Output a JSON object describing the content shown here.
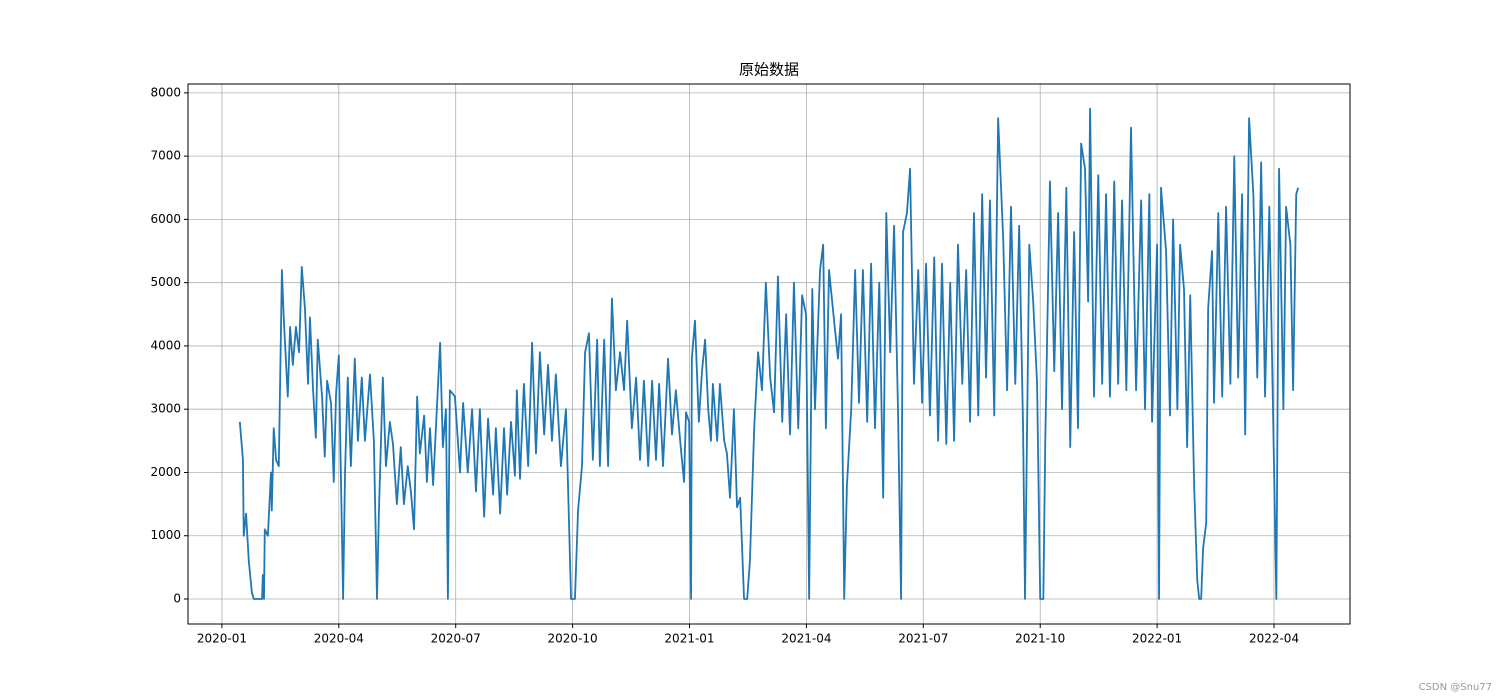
{
  "chart_data": {
    "type": "line",
    "title": "原始数据",
    "watermark": "CSDN @Snu77",
    "grid": true,
    "xlim": [
      -0.87,
      28.95
    ],
    "ylim": [
      -395,
      8140
    ],
    "xticks": [
      {
        "value": 0,
        "label": "2020-01"
      },
      {
        "value": 3,
        "label": "2020-04"
      },
      {
        "value": 6,
        "label": "2020-07"
      },
      {
        "value": 9,
        "label": "2020-10"
      },
      {
        "value": 12,
        "label": "2021-01"
      },
      {
        "value": 15,
        "label": "2021-04"
      },
      {
        "value": 18,
        "label": "2021-07"
      },
      {
        "value": 21,
        "label": "2021-10"
      },
      {
        "value": 24,
        "label": "2022-01"
      },
      {
        "value": 27,
        "label": "2022-04"
      }
    ],
    "yticks": [
      0,
      1000,
      2000,
      3000,
      4000,
      5000,
      6000,
      7000,
      8000
    ],
    "x": [
      0.46,
      0.54,
      0.56,
      0.62,
      0.69,
      0.77,
      0.82,
      1.03,
      1.05,
      1.08,
      1.1,
      1.18,
      1.26,
      1.28,
      1.33,
      1.39,
      1.46,
      1.54,
      1.59,
      1.69,
      1.75,
      1.82,
      1.9,
      1.98,
      2.05,
      2.13,
      2.21,
      2.26,
      2.34,
      2.41,
      2.46,
      2.57,
      2.64,
      2.7,
      2.8,
      2.87,
      2.93,
      3.0,
      3.11,
      3.16,
      3.23,
      3.31,
      3.41,
      3.49,
      3.59,
      3.67,
      3.8,
      3.9,
      3.98,
      4.03,
      4.13,
      4.21,
      4.31,
      4.39,
      4.49,
      4.59,
      4.67,
      4.77,
      4.85,
      4.93,
      5.01,
      5.08,
      5.19,
      5.26,
      5.34,
      5.42,
      5.52,
      5.6,
      5.67,
      5.75,
      5.8,
      5.85,
      5.98,
      6.11,
      6.19,
      6.31,
      6.42,
      6.52,
      6.62,
      6.73,
      6.83,
      6.96,
      7.03,
      7.14,
      7.24,
      7.32,
      7.42,
      7.52,
      7.57,
      7.65,
      7.75,
      7.86,
      7.96,
      8.06,
      8.16,
      8.27,
      8.37,
      8.47,
      8.57,
      8.7,
      8.83,
      8.96,
      9.06,
      9.14,
      9.24,
      9.32,
      9.42,
      9.52,
      9.63,
      9.7,
      9.81,
      9.91,
      10.01,
      10.11,
      10.22,
      10.32,
      10.4,
      10.52,
      10.63,
      10.73,
      10.83,
      10.94,
      11.04,
      11.14,
      11.22,
      11.32,
      11.45,
      11.55,
      11.65,
      11.76,
      11.86,
      11.91,
      11.99,
      12.04,
      12.06,
      12.14,
      12.24,
      12.32,
      12.4,
      12.48,
      12.55,
      12.6,
      12.71,
      12.78,
      12.89,
      12.96,
      13.04,
      13.14,
      13.22,
      13.3,
      13.4,
      13.48,
      13.55,
      13.66,
      13.76,
      13.86,
      13.96,
      14.07,
      14.17,
      14.27,
      14.38,
      14.48,
      14.58,
      14.68,
      14.79,
      14.89,
      14.99,
      15.07,
      15.15,
      15.22,
      15.35,
      15.43,
      15.5,
      15.58,
      15.71,
      15.81,
      15.89,
      15.97,
      16.04,
      16.15,
      16.25,
      16.35,
      16.45,
      16.56,
      16.66,
      16.76,
      16.87,
      16.97,
      17.05,
      17.15,
      17.25,
      17.35,
      17.43,
      17.48,
      17.58,
      17.66,
      17.76,
      17.87,
      17.97,
      18.07,
      18.17,
      18.28,
      18.38,
      18.48,
      18.59,
      18.69,
      18.79,
      18.89,
      19.0,
      19.1,
      19.2,
      19.3,
      19.41,
      19.51,
      19.61,
      19.71,
      19.82,
      19.92,
      20.05,
      20.15,
      20.25,
      20.36,
      20.46,
      20.56,
      20.61,
      20.72,
      20.82,
      20.92,
      21.0,
      21.08,
      21.13,
      21.25,
      21.36,
      21.46,
      21.56,
      21.67,
      21.77,
      21.87,
      21.97,
      22.05,
      22.15,
      22.23,
      22.28,
      22.38,
      22.49,
      22.59,
      22.69,
      22.79,
      22.9,
      23.0,
      23.1,
      23.21,
      23.33,
      23.46,
      23.59,
      23.69,
      23.8,
      23.87,
      24.0,
      24.05,
      24.1,
      24.23,
      24.33,
      24.41,
      24.52,
      24.59,
      24.69,
      24.77,
      24.85,
      24.95,
      25.03,
      25.08,
      25.13,
      25.18,
      25.26,
      25.31,
      25.41,
      25.46,
      25.57,
      25.67,
      25.77,
      25.88,
      25.98,
      26.08,
      26.18,
      26.26,
      26.36,
      26.47,
      26.57,
      26.67,
      26.77,
      26.88,
      26.98,
      27.06,
      27.13,
      27.24,
      27.31,
      27.42,
      27.49,
      27.57,
      27.62
    ],
    "series": [
      {
        "color": "#1f77b4",
        "values": [
          2800,
          2200,
          1000,
          1350,
          600,
          100,
          0,
          0,
          380,
          0,
          1100,
          1000,
          2000,
          1400,
          2700,
          2200,
          2100,
          5200,
          4400,
          3200,
          4300,
          3700,
          4300,
          3900,
          5250,
          4600,
          3400,
          4450,
          3300,
          2550,
          4100,
          3200,
          2250,
          3450,
          3100,
          1850,
          3250,
          3850,
          0,
          2000,
          3500,
          2100,
          3800,
          2500,
          3500,
          2500,
          3550,
          2500,
          0,
          1400,
          3500,
          2100,
          2800,
          2450,
          1500,
          2400,
          1500,
          2100,
          1700,
          1100,
          3200,
          2300,
          2900,
          1850,
          2700,
          1800,
          3050,
          4050,
          2400,
          3000,
          0,
          3300,
          3200,
          2000,
          3100,
          2000,
          3000,
          1700,
          3000,
          1300,
          2850,
          1650,
          2700,
          1350,
          2700,
          1650,
          2800,
          1950,
          3300,
          1900,
          3400,
          2100,
          4050,
          2300,
          3900,
          2600,
          3700,
          2500,
          3550,
          2100,
          3000,
          0,
          0,
          1400,
          2100,
          3900,
          4200,
          2200,
          4100,
          2100,
          4100,
          2100,
          4750,
          3300,
          3900,
          3300,
          4400,
          2700,
          3500,
          2200,
          3450,
          2100,
          3450,
          2200,
          3400,
          2100,
          3800,
          2600,
          3300,
          2500,
          1850,
          2950,
          2800,
          0,
          3800,
          4400,
          2800,
          3600,
          4100,
          3000,
          2500,
          3400,
          2500,
          3400,
          2500,
          2300,
          1600,
          3000,
          1450,
          1600,
          0,
          0,
          600,
          2700,
          3900,
          3300,
          5000,
          3500,
          2950,
          5100,
          2800,
          4500,
          2600,
          5000,
          2700,
          4800,
          4500,
          0,
          4900,
          3000,
          5200,
          5600,
          2700,
          5200,
          4400,
          3800,
          4500,
          0,
          1800,
          3000,
          5200,
          3100,
          5200,
          2800,
          5300,
          2700,
          5000,
          1600,
          6100,
          3900,
          5900,
          3000,
          0,
          5800,
          6100,
          6800,
          3400,
          5200,
          3100,
          5300,
          2900,
          5400,
          2500,
          5300,
          2450,
          5000,
          2500,
          5600,
          3400,
          5200,
          2800,
          6100,
          2900,
          6400,
          3500,
          6300,
          2900,
          7600,
          5700,
          3300,
          6200,
          3400,
          5900,
          2700,
          0,
          5600,
          4700,
          3400,
          0,
          0,
          2500,
          6600,
          3600,
          6100,
          3000,
          6500,
          2400,
          5800,
          2700,
          7200,
          6800,
          4700,
          7750,
          3200,
          6700,
          3400,
          6400,
          3200,
          6600,
          3400,
          6300,
          3300,
          7450,
          3300,
          6300,
          3000,
          6400,
          2800,
          5600,
          0,
          6500,
          5500,
          2900,
          6000,
          3000,
          5600,
          4900,
          2400,
          4800,
          1800,
          300,
          0,
          0,
          800,
          1200,
          4600,
          5500,
          3100,
          6100,
          3200,
          6200,
          3400,
          7000,
          3500,
          6400,
          2600,
          7600,
          6400,
          3500,
          6900,
          3200,
          6200,
          2800,
          0,
          6800,
          3000,
          6200,
          5600,
          3300,
          6400,
          6500
        ]
      }
    ]
  }
}
